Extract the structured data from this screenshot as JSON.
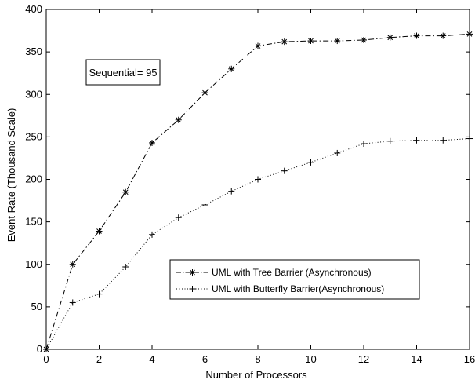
{
  "chart_data": {
    "type": "line",
    "xlabel": "Number of Processors",
    "ylabel": "Event Rate (Thousand Scale)",
    "xlim": [
      0,
      16
    ],
    "ylim": [
      0,
      400
    ],
    "xticks": [
      0,
      2,
      4,
      6,
      8,
      10,
      12,
      14,
      16
    ],
    "yticks": [
      0,
      50,
      100,
      150,
      200,
      250,
      300,
      350,
      400
    ],
    "grid": false,
    "legend_position": "bottom-right",
    "annotation": "Sequential= 95",
    "series": [
      {
        "name": "UML with Tree Barrier (Asynchronous)",
        "line_style": "dash-dot",
        "marker": "asterisk",
        "x": [
          0,
          1,
          2,
          3,
          4,
          5,
          6,
          7,
          8,
          9,
          10,
          11,
          12,
          13,
          14,
          15,
          16
        ],
        "y": [
          0,
          100,
          139,
          185,
          243,
          270,
          302,
          330,
          357,
          362,
          363,
          363,
          364,
          367,
          369,
          369,
          371
        ]
      },
      {
        "name": "UML with Butterfly Barrier(Asynchronous)",
        "line_style": "dotted",
        "marker": "plus",
        "x": [
          0,
          1,
          2,
          3,
          4,
          5,
          6,
          7,
          8,
          9,
          10,
          11,
          12,
          13,
          14,
          15,
          16
        ],
        "y": [
          0,
          55,
          65,
          97,
          135,
          155,
          170,
          186,
          200,
          210,
          220,
          231,
          242,
          245,
          246,
          246,
          248
        ]
      }
    ]
  }
}
